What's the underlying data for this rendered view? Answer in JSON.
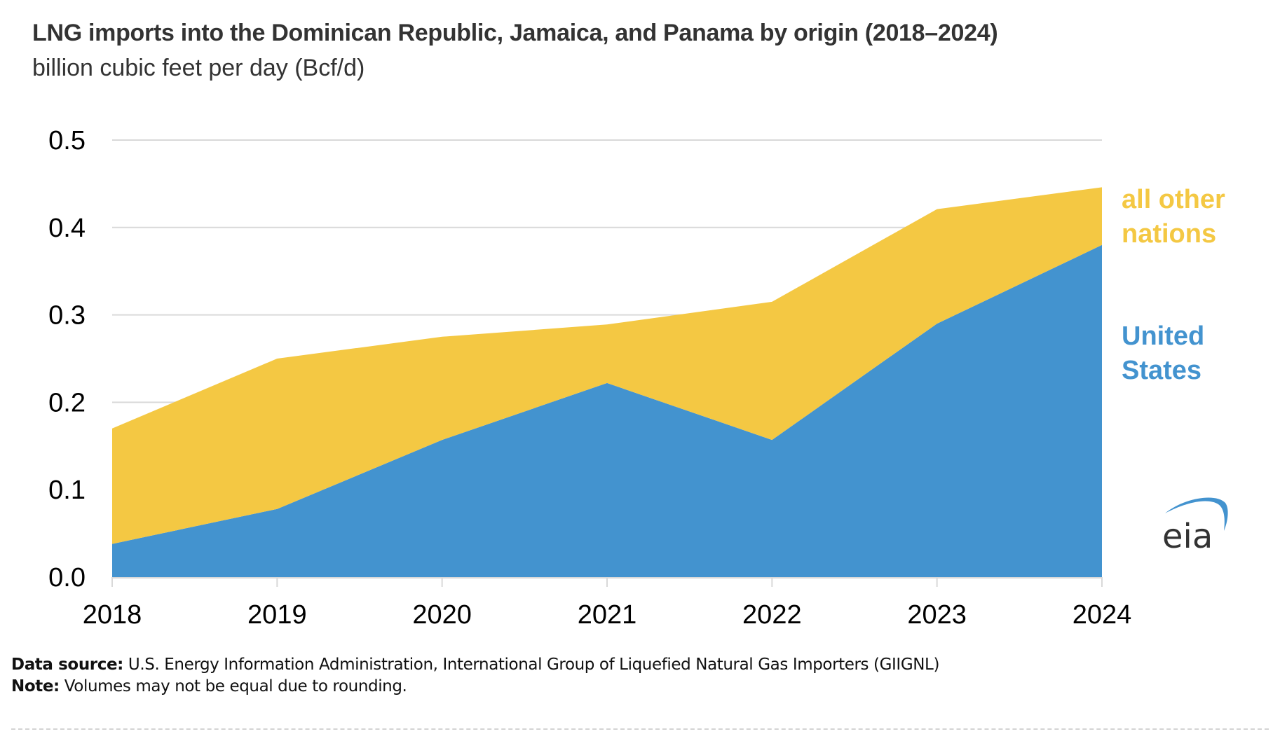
{
  "header": {
    "title": "LNG imports into the Dominican Republic, Jamaica, and Panama by origin (2018–2024)",
    "subtitle": "billion cubic feet per day (Bcf/d)"
  },
  "colors": {
    "united_states": "#4393cf",
    "all_other_nations": "#f4c843",
    "gridline": "#d9d9d9",
    "title_text": "#333333"
  },
  "chart_data": {
    "type": "area",
    "stacked": true,
    "title": "LNG imports into the Dominican Republic, Jamaica, and Panama by origin (2018–2024)",
    "subtitle": "billion cubic feet per day (Bcf/d)",
    "xlabel": "",
    "ylabel": "billion cubic feet per day (Bcf/d)",
    "x": [
      "2018",
      "2019",
      "2020",
      "2021",
      "2022",
      "2023",
      "2024"
    ],
    "ylim": [
      0,
      0.5
    ],
    "yticks": [
      "0.0",
      "0.1",
      "0.2",
      "0.3",
      "0.4",
      "0.5"
    ],
    "grid": true,
    "legend": "right, inline labels",
    "series": [
      {
        "name": "United States",
        "label_lines": [
          "United",
          "States"
        ],
        "color": "#4393cf",
        "values": [
          0.038,
          0.078,
          0.157,
          0.222,
          0.157,
          0.29,
          0.38
        ]
      },
      {
        "name": "all other nations",
        "label_lines": [
          "all other",
          "nations"
        ],
        "color": "#f4c843",
        "values": [
          0.132,
          0.172,
          0.118,
          0.067,
          0.158,
          0.131,
          0.066
        ]
      }
    ],
    "totals": [
      0.17,
      0.25,
      0.275,
      0.289,
      0.315,
      0.421,
      0.446
    ]
  },
  "footer": {
    "source_label": "Data source:",
    "source_text": " U.S. Energy Information Administration, International Group of Liquefied Natural Gas Importers (GIIGNL)",
    "note_label": "Note:",
    "note_text": " Volumes may not be equal due to rounding."
  },
  "logo": {
    "text": "eia",
    "icon": "eia-logo-icon"
  }
}
